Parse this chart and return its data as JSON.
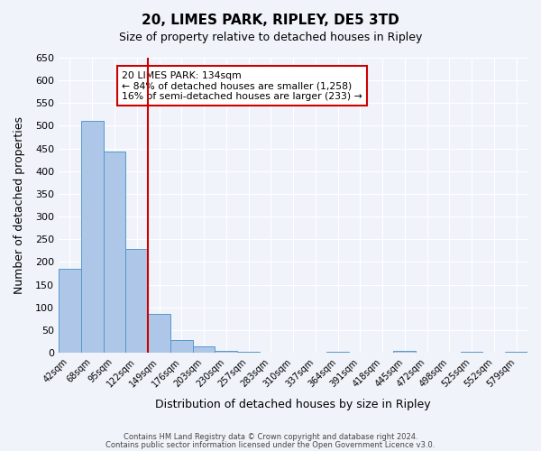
{
  "title": "20, LIMES PARK, RIPLEY, DE5 3TD",
  "subtitle": "Size of property relative to detached houses in Ripley",
  "xlabel": "Distribution of detached houses by size in Ripley",
  "ylabel": "Number of detached properties",
  "footer_line1": "Contains HM Land Registry data © Crown copyright and database right 2024.",
  "footer_line2": "Contains public sector information licensed under the Open Government Licence v3.0.",
  "bin_labels": [
    "42sqm",
    "68sqm",
    "95sqm",
    "122sqm",
    "149sqm",
    "176sqm",
    "203sqm",
    "230sqm",
    "257sqm",
    "283sqm",
    "310sqm",
    "337sqm",
    "364sqm",
    "391sqm",
    "418sqm",
    "445sqm",
    "472sqm",
    "498sqm",
    "525sqm",
    "552sqm",
    "579sqm"
  ],
  "bar_values": [
    184,
    510,
    443,
    228,
    85,
    28,
    14,
    5,
    3,
    0,
    0,
    0,
    3,
    0,
    0,
    5,
    0,
    0,
    3,
    0,
    3
  ],
  "bar_color": "#aec6e8",
  "bar_edge_color": "#5599cc",
  "red_line_x": 3.5,
  "annotation_title": "20 LIMES PARK: 134sqm",
  "annotation_line1": "← 84% of detached houses are smaller (1,258)",
  "annotation_line2": "16% of semi-detached houses are larger (233) →",
  "ylim": [
    0,
    650
  ],
  "yticks": [
    0,
    50,
    100,
    150,
    200,
    250,
    300,
    350,
    400,
    450,
    500,
    550,
    600,
    650
  ],
  "bg_color": "#f0f4fa",
  "plot_bg_color": "#f0f4fa",
  "annotation_box_color": "#ffffff",
  "annotation_box_edge": "#cc0000",
  "red_line_color": "#cc0000"
}
